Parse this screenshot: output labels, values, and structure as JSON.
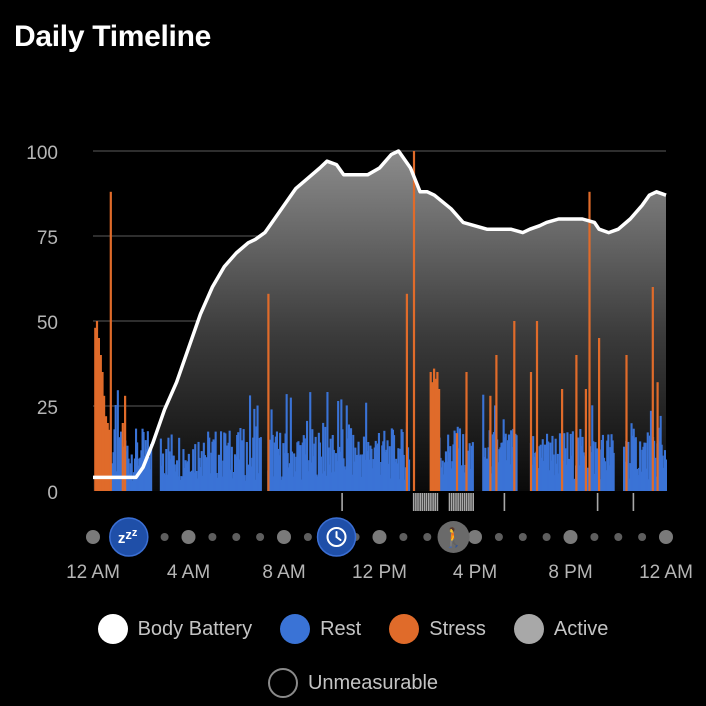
{
  "title": "Daily Timeline",
  "colors": {
    "battery": "#ffffff",
    "rest": "#3a73d6",
    "stress": "#e06b2a",
    "active": "#a8a8a8",
    "unmeasurable": "#8a8a8a",
    "grid": "#4a4a4a",
    "tick": "#b5b5b5",
    "badge_blue": "#1f4fa8",
    "badge_gray": "#6a6a6a"
  },
  "chart_data": {
    "type": "area",
    "x_unit": "hours since 12 AM",
    "xlim": [
      0,
      24
    ],
    "ylim": [
      0,
      100
    ],
    "yticks": [
      0,
      25,
      50,
      75,
      100
    ],
    "xticks": [
      {
        "x": 0,
        "label": "12 AM"
      },
      {
        "x": 4,
        "label": "4 AM"
      },
      {
        "x": 8,
        "label": "8 AM"
      },
      {
        "x": 12,
        "label": "12 PM"
      },
      {
        "x": 16,
        "label": "4 PM"
      },
      {
        "x": 20,
        "label": "8 PM"
      },
      {
        "x": 24,
        "label": "12 AM"
      }
    ],
    "grid": true,
    "series": [
      {
        "name": "Body Battery",
        "x": [
          0,
          1,
          1.8,
          2.1,
          2.5,
          3,
          3.5,
          4,
          4.5,
          5,
          5.5,
          6,
          6.5,
          6.8,
          7.2,
          7.5,
          8,
          8.5,
          9,
          9.5,
          9.8,
          10.2,
          10.5,
          11,
          11.5,
          12,
          12.5,
          12.8,
          13.3,
          13.7,
          14,
          14.3,
          15,
          15.5,
          16,
          16.5,
          17,
          17.5,
          18,
          18.3,
          18.7,
          19,
          19.5,
          20,
          20.5,
          21,
          21.2,
          21.6,
          22,
          22.5,
          23,
          23.3,
          23.6,
          24
        ],
        "values": [
          4,
          4,
          4,
          7,
          14,
          24,
          32,
          42,
          52,
          60,
          66,
          70,
          73,
          74,
          76,
          79,
          84,
          89,
          92,
          95,
          97,
          96,
          93,
          93,
          93,
          95,
          99,
          100,
          95,
          88,
          88,
          87,
          83,
          79,
          78,
          77,
          77,
          77,
          76,
          77,
          78,
          79,
          80,
          80,
          80,
          79,
          77,
          76,
          77,
          80,
          84,
          87,
          88,
          87
        ]
      },
      {
        "name": "Rest",
        "ranges": [
          [
            0.5,
            2.4
          ],
          [
            2.8,
            7.0
          ],
          [
            7.3,
            13.2
          ],
          [
            14.2,
            15.9
          ],
          [
            16.3,
            17.7
          ],
          [
            18.3,
            21.8
          ],
          [
            22.2,
            24
          ]
        ],
        "typical_level": 12
      },
      {
        "name": "Stress",
        "x": [
          0.05,
          0.12,
          0.2,
          0.28,
          0.35,
          0.42,
          0.5,
          0.57,
          0.63,
          0.7,
          1.2,
          1.3,
          7.3,
          13.1,
          13.4,
          14.1,
          14.17,
          14.24,
          14.31,
          14.38,
          14.45,
          15.2,
          15.6,
          16.6,
          16.85,
          17.6,
          18.3,
          18.55,
          19.6,
          20.2,
          20.6,
          20.75,
          21.15,
          22.3,
          23.4,
          23.6
        ],
        "values": [
          48,
          50,
          45,
          40,
          35,
          28,
          22,
          20,
          18,
          88,
          20,
          28,
          58,
          58,
          100,
          35,
          32,
          36,
          33,
          35,
          30,
          17,
          35,
          28,
          40,
          50,
          35,
          50,
          30,
          40,
          30,
          88,
          45,
          40,
          60,
          32
        ]
      },
      {
        "name": "Active",
        "ranges": [
          [
            10.4,
            10.45
          ],
          [
            13.4,
            14.4
          ],
          [
            14.9,
            15.9
          ],
          [
            17.2,
            17.25
          ],
          [
            21.1,
            21.15
          ],
          [
            22.6,
            22.65
          ]
        ]
      }
    ],
    "markers": [
      {
        "name": "sleep",
        "x": 1.5,
        "icon": "zzz-icon",
        "glyph": "zzz"
      },
      {
        "name": "clock",
        "x": 10.2,
        "icon": "clock-icon",
        "glyph": ""
      },
      {
        "name": "activity",
        "x": 15.1,
        "icon": "walking-icon",
        "glyph": "🚶"
      }
    ]
  },
  "legend": [
    {
      "label": "Body Battery",
      "color": "#ffffff",
      "style": "filled"
    },
    {
      "label": "Rest",
      "color": "#3a73d6",
      "style": "filled"
    },
    {
      "label": "Stress",
      "color": "#e06b2a",
      "style": "filled"
    },
    {
      "label": "Active",
      "color": "#a8a8a8",
      "style": "filled"
    },
    {
      "label": "Unmeasurable",
      "color": "#8a8a8a",
      "style": "outline"
    }
  ]
}
